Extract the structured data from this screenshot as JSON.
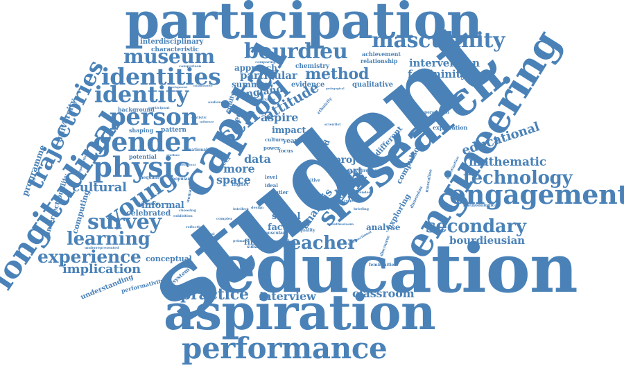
{
  "word_color": "#4a82b8",
  "background": "#ffffff",
  "words": {
    "participation": "participation",
    "masculinity": "masculinity",
    "bourdieu": "bourdieu",
    "capital": "capital",
    "museum": "museum",
    "identities": "identities",
    "identity": "identity",
    "person": "person",
    "gender": "gender",
    "physic": "physic",
    "young": "young",
    "cultural": "cultural",
    "survey": "survey",
    "learning": "learning",
    "experience": "experience",
    "implication": "implication",
    "longitudinal": "longitudinal",
    "trajectories": "trajectories",
    "student": "student",
    "education": "education",
    "aspiration": "aspiration",
    "performance": "performance",
    "practice": "practice",
    "interview": "interview",
    "classroom": "classroom",
    "teacher": "teacher",
    "school": "school",
    "stem": "stem",
    "research": "research",
    "engineering": "engineering",
    "engagement": "engagement",
    "technology": "technology",
    "mathematic": "mathematic",
    "educational": "educational",
    "secondary": "secondary",
    "bourdieusian": "bourdieusian",
    "method": "method",
    "attitude": "attitude",
    "intervention": "intervention",
    "femininity": "femininity",
    "qualitative": "qualitative",
    "evidence": "evidence",
    "particular": "particular",
    "approach": "approach",
    "summary": "summary",
    "england": "england",
    "aspire": "aspire",
    "impact": "impact",
    "data": "data",
    "more": "more",
    "space": "space",
    "project": "project",
    "report": "report",
    "policy": "policy",
    "urban": "urban",
    "analysis": "analysis",
    "social": "social",
    "factor": "factor",
    "finding": "finding",
    "analyse": "analyse",
    "exploring": "exploring",
    "compulsory": "compulsory",
    "different": "different",
    "mixed": "mixed",
    "university": "university",
    "programme": "programme",
    "intersectionality": "intersectionality",
    "computing": "computing",
    "informal": "informal",
    "celebrated": "celebrated",
    "conceptual": "conceptual",
    "understanding": "understanding",
    "performativity": "performativity",
    "ecosystem": "ecosystem",
    "interdisciplinary": "interdisciplinary",
    "characteristic": "characteristic",
    "chemistry": "chemistry",
    "relationship": "relationship",
    "achievement": "achievement",
    "background": "background",
    "shaping": "shaping",
    "pattern": "pattern",
    "potential": "potential",
    "inequality": "inequality",
    "discussion": "discussion",
    "choosing": "choosing",
    "underrepresented": "underrepresented",
    "national": "national",
    "popular": "popular",
    "statistic": "statistic",
    "exploration": "exploration",
    "perception": "perception",
    "methodological": "methodological",
    "femininities": "femininities",
    "discourse": "discourse",
    "dimension": "dimension",
    "equality": "equality",
    "subaltern": "subaltern",
    "muscular": "muscular",
    "aged": "aged",
    "career": "career",
    "equity": "equity",
    "year": "year",
    "focus": "focus",
    "study": "study",
    "previous": "previous",
    "culture": "culture",
    "power": "power",
    "level": "level",
    "ideal": "ideal",
    "butler": "butler",
    "higher": "higher",
    "design": "design",
    "reflective": "reflective",
    "exceptional": "exceptional",
    "comparison": "comparison",
    "development": "development",
    "collaborative": "collaborative",
    "audience": "audience",
    "narrative": "narrative",
    "ethnicity": "ethnicity",
    "comparing": "comparing",
    "participant": "participant",
    "theoretical": "theoretical",
    "woman": "woman",
    "exhibition": "exhibition",
    "primary": "primary",
    "scientist": "scientist",
    "positive": "positive",
    "response": "response",
    "extended": "extended",
    "briefing": "briefing",
    "pedagogical": "pedagogical",
    "investigation": "investigation",
    "masculine": "masculine",
    "intersectional": "intersectional",
    "expectation": "expectation",
    "attribute": "attribute",
    "enthusiasm": "enthusiasm",
    "intellect": "intellect",
    "influence": "influence",
    "complex": "complex"
  }
}
